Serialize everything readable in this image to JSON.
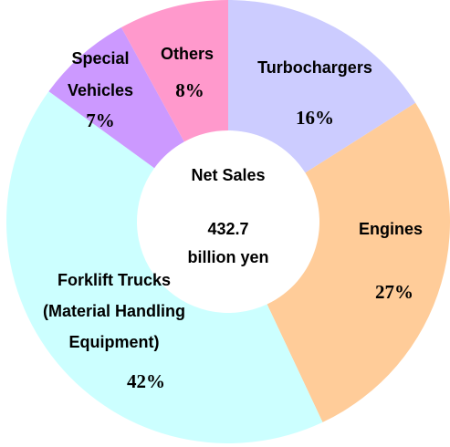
{
  "chart_data": {
    "type": "donut",
    "center_text": [
      "Net Sales",
      "432.7",
      "billion yen"
    ],
    "categories": [
      [
        "Turbochargers"
      ],
      [
        "Engines"
      ],
      [
        "Forklift Trucks",
        "(Material Handling",
        "Equipment)"
      ],
      [
        "Special",
        "Vehicles"
      ],
      [
        "Others"
      ]
    ],
    "values": [
      16,
      27,
      42,
      7,
      8
    ],
    "value_labels": [
      "16%",
      "27%",
      "42%",
      "7%",
      "8%"
    ],
    "colors": [
      "#ccccff",
      "#ffcc99",
      "#ccffff",
      "#cc99ff",
      "#ff99cc"
    ]
  }
}
